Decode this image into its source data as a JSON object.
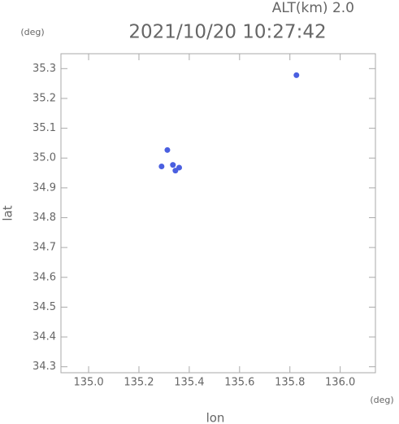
{
  "chart_data": {
    "type": "scatter",
    "annotation": "ALT(km) 2.0",
    "title": "2021/10/20 10:27:42",
    "y_unit": "(deg)",
    "x_unit": "(deg)",
    "xlabel": "lon",
    "ylabel": "lat",
    "xlim": [
      134.89,
      136.14
    ],
    "ylim": [
      34.28,
      35.35
    ],
    "xticks": [
      {
        "value": 135.0,
        "label": "135.0"
      },
      135.2,
      135.4,
      135.6,
      135.8,
      {
        "value": 136.0,
        "label": "136.0"
      }
    ],
    "yticks": [
      34.3,
      34.4,
      34.5,
      34.6,
      34.7,
      34.8,
      34.9,
      {
        "value": 35.0,
        "label": "35.0"
      },
      35.1,
      35.2,
      35.3
    ],
    "series": [
      {
        "color": "#4a5fe0",
        "x": [
          135.826,
          135.313,
          135.29,
          135.335,
          135.36,
          135.345
        ],
        "values": [
          35.278,
          35.027,
          34.972,
          34.977,
          34.968,
          34.958
        ]
      }
    ]
  }
}
